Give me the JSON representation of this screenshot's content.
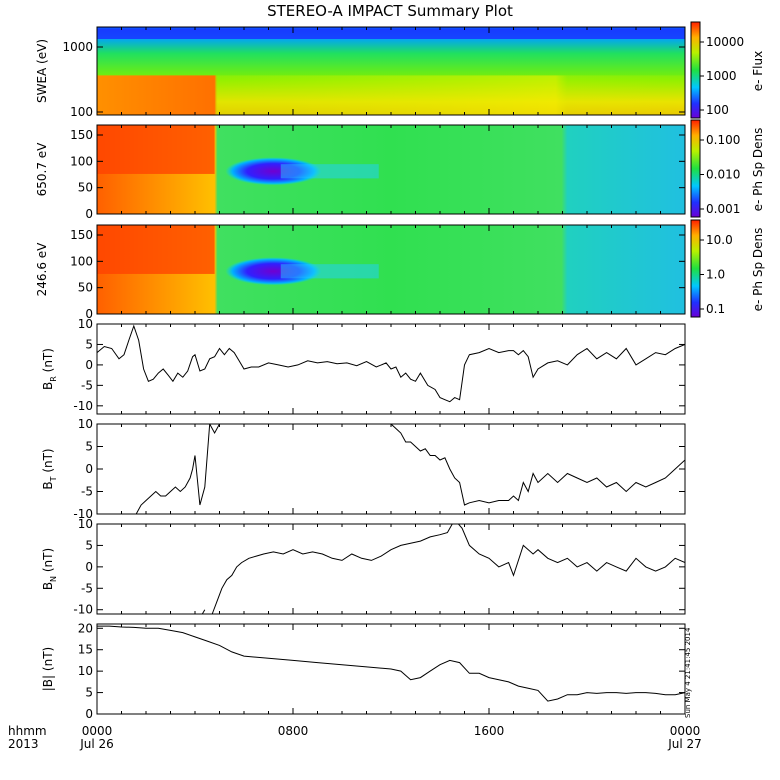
{
  "chart_data": {
    "title": "STEREO-A IMPACT Summary Plot",
    "type": "multi-panel",
    "x_axis": {
      "label_line1": "hhmm",
      "label_line2": "2013",
      "ticks": [
        {
          "time": "0000",
          "date": "Jul 26"
        },
        {
          "time": "0800",
          "date": ""
        },
        {
          "time": "1600",
          "date": ""
        },
        {
          "time": "0000",
          "date": "Jul 27"
        }
      ],
      "range_hours": [
        0,
        24
      ]
    },
    "timestamp": "Sun May  4 21:41:45 2014",
    "spectrograms": [
      {
        "ylabel": "SWEA (eV)",
        "cbar_label": "e- Flux",
        "y_ticks": [
          "1000",
          "100"
        ],
        "cbar_ticks": [
          "10000",
          "1000",
          "100"
        ],
        "log_y": true,
        "colormap": "rainbow"
      },
      {
        "ylabel": "650.7 eV",
        "cbar_label": "e- Ph Sp Dens",
        "y_ticks": [
          "150",
          "100",
          "50",
          "0"
        ],
        "cbar_ticks": [
          "0.100",
          "0.010",
          "0.001"
        ],
        "ylim": [
          0,
          180
        ],
        "colormap": "rainbow"
      },
      {
        "ylabel": "246.6 eV",
        "cbar_label": "e- Ph Sp Dens",
        "y_ticks": [
          "150",
          "100",
          "50",
          "0"
        ],
        "cbar_ticks": [
          "10.0",
          "1.0",
          "0.1"
        ],
        "ylim": [
          0,
          180
        ],
        "colormap": "rainbow"
      }
    ],
    "line_panels": [
      {
        "ylabel_main": "B",
        "ylabel_sub": "R",
        "ylabel_unit": " (nT)",
        "ylim": [
          -12,
          10
        ],
        "y_ticks": [
          10,
          5,
          0,
          -5,
          -10
        ],
        "x": [
          0,
          0.3,
          0.6,
          0.9,
          1.1,
          1.3,
          1.5,
          1.7,
          1.9,
          2.1,
          2.3,
          2.5,
          2.7,
          2.9,
          3.1,
          3.3,
          3.5,
          3.7,
          3.9,
          4.0,
          4.2,
          4.4,
          4.6,
          4.8,
          5.0,
          5.2,
          5.4,
          5.6,
          5.8,
          6.0,
          6.3,
          6.6,
          7.0,
          7.4,
          7.8,
          8.2,
          8.6,
          9.0,
          9.4,
          9.8,
          10.2,
          10.6,
          11.0,
          11.4,
          11.8,
          12.0,
          12.2,
          12.4,
          12.6,
          12.8,
          13.0,
          13.2,
          13.5,
          13.8,
          14.0,
          14.2,
          14.4,
          14.6,
          14.8,
          15.0,
          15.2,
          15.6,
          16.0,
          16.4,
          16.8,
          17.0,
          17.2,
          17.4,
          17.6,
          17.8,
          18.0,
          18.4,
          18.8,
          19.2,
          19.6,
          20.0,
          20.4,
          20.8,
          21.2,
          21.6,
          22.0,
          22.4,
          22.8,
          23.2,
          23.6,
          24.0
        ],
        "y": [
          3,
          4.5,
          4,
          1.5,
          2.5,
          6,
          9.5,
          6,
          -1,
          -4,
          -3.5,
          -2,
          -1,
          -2.5,
          -4,
          -2,
          -3,
          -1.5,
          2,
          2.5,
          -1.5,
          -1,
          1.5,
          2,
          4,
          2.5,
          4,
          3,
          1,
          -1,
          -0.5,
          -0.5,
          0.5,
          0,
          -0.5,
          0,
          1,
          0.5,
          0.8,
          0.3,
          0.5,
          -0.2,
          0.8,
          -0.5,
          0.5,
          -1,
          -0.5,
          -3,
          -2,
          -3.5,
          -4,
          -2,
          -5,
          -6,
          -8,
          -8.5,
          -9,
          -8,
          -8.5,
          0,
          2.5,
          3,
          4,
          3,
          3.5,
          3.5,
          2.5,
          3.5,
          2,
          -3,
          -1,
          0.5,
          1,
          0,
          2.5,
          4,
          1.5,
          3,
          1.5,
          4,
          0,
          1.5,
          3,
          2.5,
          4,
          5
        ]
      },
      {
        "ylabel_main": "B",
        "ylabel_sub": "T",
        "ylabel_unit": " (nT)",
        "ylim": [
          -10,
          10
        ],
        "y_ticks": [
          10,
          5,
          0,
          -5,
          -10
        ],
        "segments": [
          {
            "x": [
              1.6,
              1.8,
              2.0,
              2.2,
              2.4,
              2.6,
              2.8,
              3.0,
              3.2,
              3.4,
              3.6,
              3.8,
              3.9,
              4.0,
              4.2,
              4.4,
              4.6,
              4.8,
              5.0
            ],
            "y": [
              -10,
              -8,
              -7,
              -6,
              -5,
              -6,
              -6,
              -5,
              -4,
              -5,
              -4,
              -2,
              0,
              3,
              -8,
              -4,
              10,
              8,
              10
            ]
          },
          {
            "x": [
              12.0,
              12.2,
              12.4,
              12.6,
              12.8,
              13.0,
              13.2,
              13.4,
              13.6,
              13.8,
              14.0,
              14.2,
              14.4,
              14.6,
              14.8,
              15.0,
              15.2,
              15.6,
              16.0,
              16.4,
              16.8,
              17.0,
              17.2,
              17.4,
              17.6,
              17.8,
              18.0,
              18.4,
              18.8,
              19.2,
              19.6,
              20.0,
              20.4,
              20.8,
              21.2,
              21.6,
              22.0,
              22.4,
              22.8,
              23.2,
              23.6,
              24.0
            ],
            "y": [
              10,
              9,
              8,
              6,
              6,
              5,
              4,
              4.5,
              3,
              3,
              2,
              2.5,
              0,
              -2,
              -3,
              -8,
              -7.5,
              -7,
              -7.5,
              -7,
              -7,
              -6,
              -7,
              -3,
              -5,
              -1,
              -3,
              -1,
              -3,
              -1,
              -2,
              -3,
              -2,
              -4,
              -3,
              -5,
              -3,
              -4,
              -3,
              -2,
              0,
              2
            ]
          }
        ]
      },
      {
        "ylabel_main": "B",
        "ylabel_sub": "N",
        "ylabel_unit": " (nT)",
        "ylim": [
          -11,
          10
        ],
        "y_ticks": [
          10,
          5,
          0,
          -5,
          -10
        ],
        "segments": [
          {
            "x": [
              4.3,
              4.4
            ],
            "y": [
              -11,
              -10
            ]
          },
          {
            "x": [
              4.7,
              4.9,
              5.1,
              5.3,
              5.5,
              5.7,
              5.9,
              6.2,
              6.5,
              6.8,
              7.2,
              7.6,
              8.0,
              8.4,
              8.8,
              9.2,
              9.6,
              10.0,
              10.4,
              10.8,
              11.2,
              11.6,
              12.0,
              12.4,
              12.8,
              13.2,
              13.6,
              14.0,
              14.3,
              14.6,
              14.9,
              15.2,
              15.6,
              16.0,
              16.4,
              16.8,
              17.0,
              17.4,
              17.8,
              18.0,
              18.4,
              18.8,
              19.2,
              19.6,
              20.0,
              20.4,
              20.8,
              21.2,
              21.6,
              22.0,
              22.4,
              22.8,
              23.2,
              23.6,
              24.0
            ],
            "y": [
              -11,
              -8,
              -5,
              -3,
              -2,
              0,
              1,
              2,
              2.5,
              3,
              3.5,
              3,
              4,
              3,
              3.5,
              3,
              2,
              1.5,
              3,
              2,
              1.5,
              2.5,
              4,
              5,
              5.5,
              6,
              7,
              7.5,
              8,
              11,
              9,
              5,
              3,
              2,
              0,
              1,
              -2,
              5,
              3,
              4,
              2,
              1,
              2,
              0,
              1,
              -1,
              1,
              0,
              -1,
              2,
              0,
              -1,
              0,
              2,
              1
            ]
          }
        ]
      },
      {
        "ylabel_main": "|B|",
        "ylabel_sub": "",
        "ylabel_unit": " (nT)",
        "ylim": [
          0,
          21
        ],
        "y_ticks": [
          20,
          15,
          10,
          5,
          0
        ],
        "x": [
          0,
          0.5,
          1.0,
          1.5,
          2.0,
          2.5,
          3.0,
          3.5,
          4.0,
          4.5,
          5.0,
          5.5,
          6.0,
          7.0,
          8.0,
          9.0,
          10.0,
          11.0,
          12.0,
          12.4,
          12.8,
          13.2,
          13.6,
          14.0,
          14.4,
          14.8,
          15.2,
          15.6,
          16.0,
          16.4,
          16.8,
          17.2,
          17.6,
          18.0,
          18.4,
          18.8,
          19.2,
          19.6,
          20.0,
          20.4,
          20.8,
          21.2,
          21.6,
          22.0,
          22.4,
          22.8,
          23.2,
          23.6,
          24.0
        ],
        "y": [
          20.5,
          20.5,
          20.3,
          20.2,
          20,
          20,
          19.5,
          19,
          18,
          17,
          16,
          14.5,
          13.5,
          13,
          12.5,
          12,
          11.5,
          11,
          10.5,
          10,
          8,
          8.5,
          10,
          11.5,
          12.5,
          12,
          9.5,
          9.5,
          8.5,
          8,
          7.5,
          6.5,
          6,
          5.5,
          3,
          3.5,
          4.5,
          4.5,
          5,
          4.8,
          5,
          5,
          4.8,
          5,
          5,
          4.8,
          4.5,
          4.5,
          5
        ]
      }
    ]
  }
}
